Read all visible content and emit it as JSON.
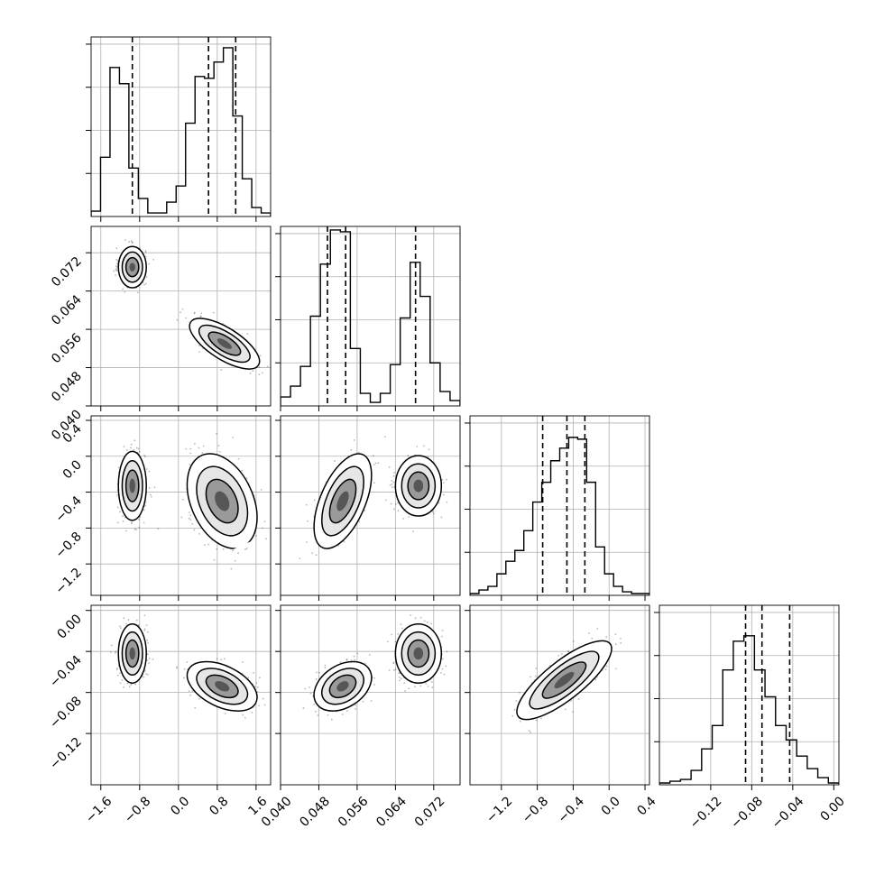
{
  "chart_data": {
    "type": "corner",
    "title": "",
    "grid": true,
    "colors": {
      "line": "#000000",
      "grid": "#b0b0b0",
      "points": "#333333"
    },
    "parameters": [
      {
        "range": [
          -1.8,
          1.9
        ],
        "ticks": [
          -1.6,
          -0.8,
          0.0,
          0.8,
          1.6
        ],
        "tick_labels": [
          "−1.6",
          "−0.8",
          "0.0",
          "0.8",
          "1.6"
        ],
        "quantiles": [
          -0.95,
          0.62,
          1.18
        ],
        "hist_counts": [
          0.03,
          0.33,
          0.83,
          0.74,
          0.27,
          0.1,
          0.02,
          0.02,
          0.08,
          0.17,
          0.52,
          0.78,
          0.77,
          0.86,
          0.94,
          0.56,
          0.21,
          0.05,
          0.02
        ],
        "modes": [
          {
            "mean": -0.95,
            "sd": 0.14
          },
          {
            "mean": 0.95,
            "sd": 0.32
          }
        ]
      },
      {
        "range": [
          0.04,
          0.0775
        ],
        "ticks": [
          0.04,
          0.048,
          0.056,
          0.064,
          0.072
        ],
        "tick_labels": [
          "0.040",
          "0.048",
          "0.056",
          "0.064",
          "0.072"
        ],
        "quantiles": [
          0.0498,
          0.0536,
          0.0682
        ],
        "hist_counts": [
          0.05,
          0.11,
          0.22,
          0.5,
          0.79,
          0.98,
          0.97,
          0.32,
          0.07,
          0.02,
          0.07,
          0.23,
          0.49,
          0.8,
          0.61,
          0.24,
          0.08,
          0.03
        ],
        "modes": [
          {
            "mean": 0.053,
            "sd": 0.0025
          },
          {
            "mean": 0.0688,
            "sd": 0.002
          }
        ]
      },
      {
        "range": [
          -1.55,
          0.45
        ],
        "ticks": [
          -1.2,
          -0.8,
          -0.4,
          0.0,
          0.4
        ],
        "tick_labels": [
          "−1.2",
          "−0.8",
          "−0.4",
          "0.0",
          "0.4"
        ],
        "quantiles": [
          -0.74,
          -0.47,
          -0.27
        ],
        "hist_counts": [
          0.01,
          0.03,
          0.05,
          0.12,
          0.19,
          0.25,
          0.36,
          0.52,
          0.63,
          0.75,
          0.82,
          0.88,
          0.87,
          0.63,
          0.27,
          0.12,
          0.05,
          0.02,
          0.01,
          0.01
        ],
        "modes": []
      },
      {
        "range": [
          -0.17,
          0.005
        ],
        "ticks": [
          -0.12,
          -0.08,
          -0.04,
          0.0
        ],
        "tick_labels": [
          "−0.12",
          "−0.08",
          "−0.04",
          "0.00"
        ],
        "quantiles": [
          -0.086,
          -0.07,
          -0.043
        ],
        "hist_counts": [
          0.01,
          0.02,
          0.03,
          0.08,
          0.2,
          0.33,
          0.64,
          0.8,
          0.83,
          0.64,
          0.49,
          0.33,
          0.25,
          0.16,
          0.09,
          0.04,
          0.01
        ],
        "modes": []
      }
    ],
    "pair_panels": [
      {
        "row": 1,
        "col": 0,
        "clusters": [
          {
            "mx": -0.95,
            "my": 0.069,
            "sx": 0.12,
            "sy": 0.0018,
            "r": 0.0
          },
          {
            "mx": 0.95,
            "my": 0.053,
            "sx": 0.3,
            "sy": 0.0022,
            "r": -0.7
          }
        ]
      },
      {
        "row": 2,
        "col": 0,
        "clusters": [
          {
            "mx": -0.95,
            "my": -0.33,
            "sx": 0.12,
            "sy": 0.16,
            "r": 0.0
          },
          {
            "mx": 0.9,
            "my": -0.5,
            "sx": 0.3,
            "sy": 0.22,
            "r": -0.35
          }
        ]
      },
      {
        "row": 2,
        "col": 1,
        "clusters": [
          {
            "mx": 0.053,
            "my": -0.5,
            "sx": 0.0025,
            "sy": 0.22,
            "r": 0.55
          },
          {
            "mx": 0.0688,
            "my": -0.33,
            "sx": 0.002,
            "sy": 0.14,
            "r": 0.0
          }
        ]
      },
      {
        "row": 3,
        "col": 0,
        "clusters": [
          {
            "mx": -0.95,
            "my": -0.042,
            "sx": 0.12,
            "sy": 0.012,
            "r": 0.0
          },
          {
            "mx": 0.9,
            "my": -0.074,
            "sx": 0.3,
            "sy": 0.01,
            "r": -0.45
          }
        ]
      },
      {
        "row": 3,
        "col": 1,
        "clusters": [
          {
            "mx": 0.053,
            "my": -0.074,
            "sx": 0.0025,
            "sy": 0.01,
            "r": 0.35
          },
          {
            "mx": 0.0688,
            "my": -0.042,
            "sx": 0.002,
            "sy": 0.012,
            "r": 0.0
          }
        ]
      },
      {
        "row": 3,
        "col": 2,
        "clusters": [
          {
            "mx": -0.5,
            "my": -0.068,
            "sx": 0.22,
            "sy": 0.016,
            "r": 0.8
          }
        ]
      }
    ]
  }
}
